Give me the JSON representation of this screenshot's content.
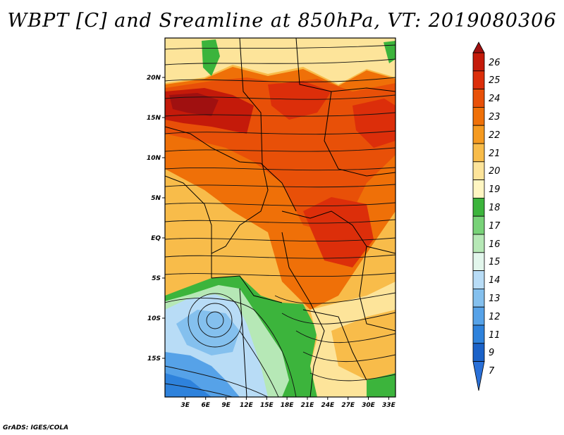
{
  "title": "WBPT [C] and Sreamline at 850hPa, VT: 2019080306",
  "credit": "GrADS: IGES/COLA",
  "map": {
    "variable": "Wet-bulb potential temperature",
    "units": "C",
    "level": "850hPa",
    "valid_time": "2019080306",
    "lon_range_deg": [
      0,
      34
    ],
    "lat_range_deg": [
      -20,
      24
    ],
    "x_ticks": [
      "3E",
      "6E",
      "9E",
      "12E",
      "15E",
      "18E",
      "21E",
      "24E",
      "27E",
      "30E",
      "33E"
    ],
    "y_ticks": [
      "20N",
      "15N",
      "10N",
      "5N",
      "EQ",
      "5S",
      "10S",
      "15S"
    ]
  },
  "colorbar": {
    "levels": [
      "26",
      "25",
      "24",
      "23",
      "22",
      "21",
      "20",
      "19",
      "18",
      "17",
      "16",
      "15",
      "14",
      "13",
      "12",
      "11",
      "9",
      "7"
    ],
    "colors": [
      "#a01010",
      "#c41a0a",
      "#dc2e0a",
      "#e85008",
      "#ef7008",
      "#f59a20",
      "#f8bc4a",
      "#fde49a",
      "#fff6c2",
      "#3cb43c",
      "#78d278",
      "#b6e8b6",
      "#e2f6ec",
      "#b8dcf6",
      "#84c0ee",
      "#56a2e8",
      "#2e82dc",
      "#1b62c8",
      "#2a70d8"
    ]
  }
}
